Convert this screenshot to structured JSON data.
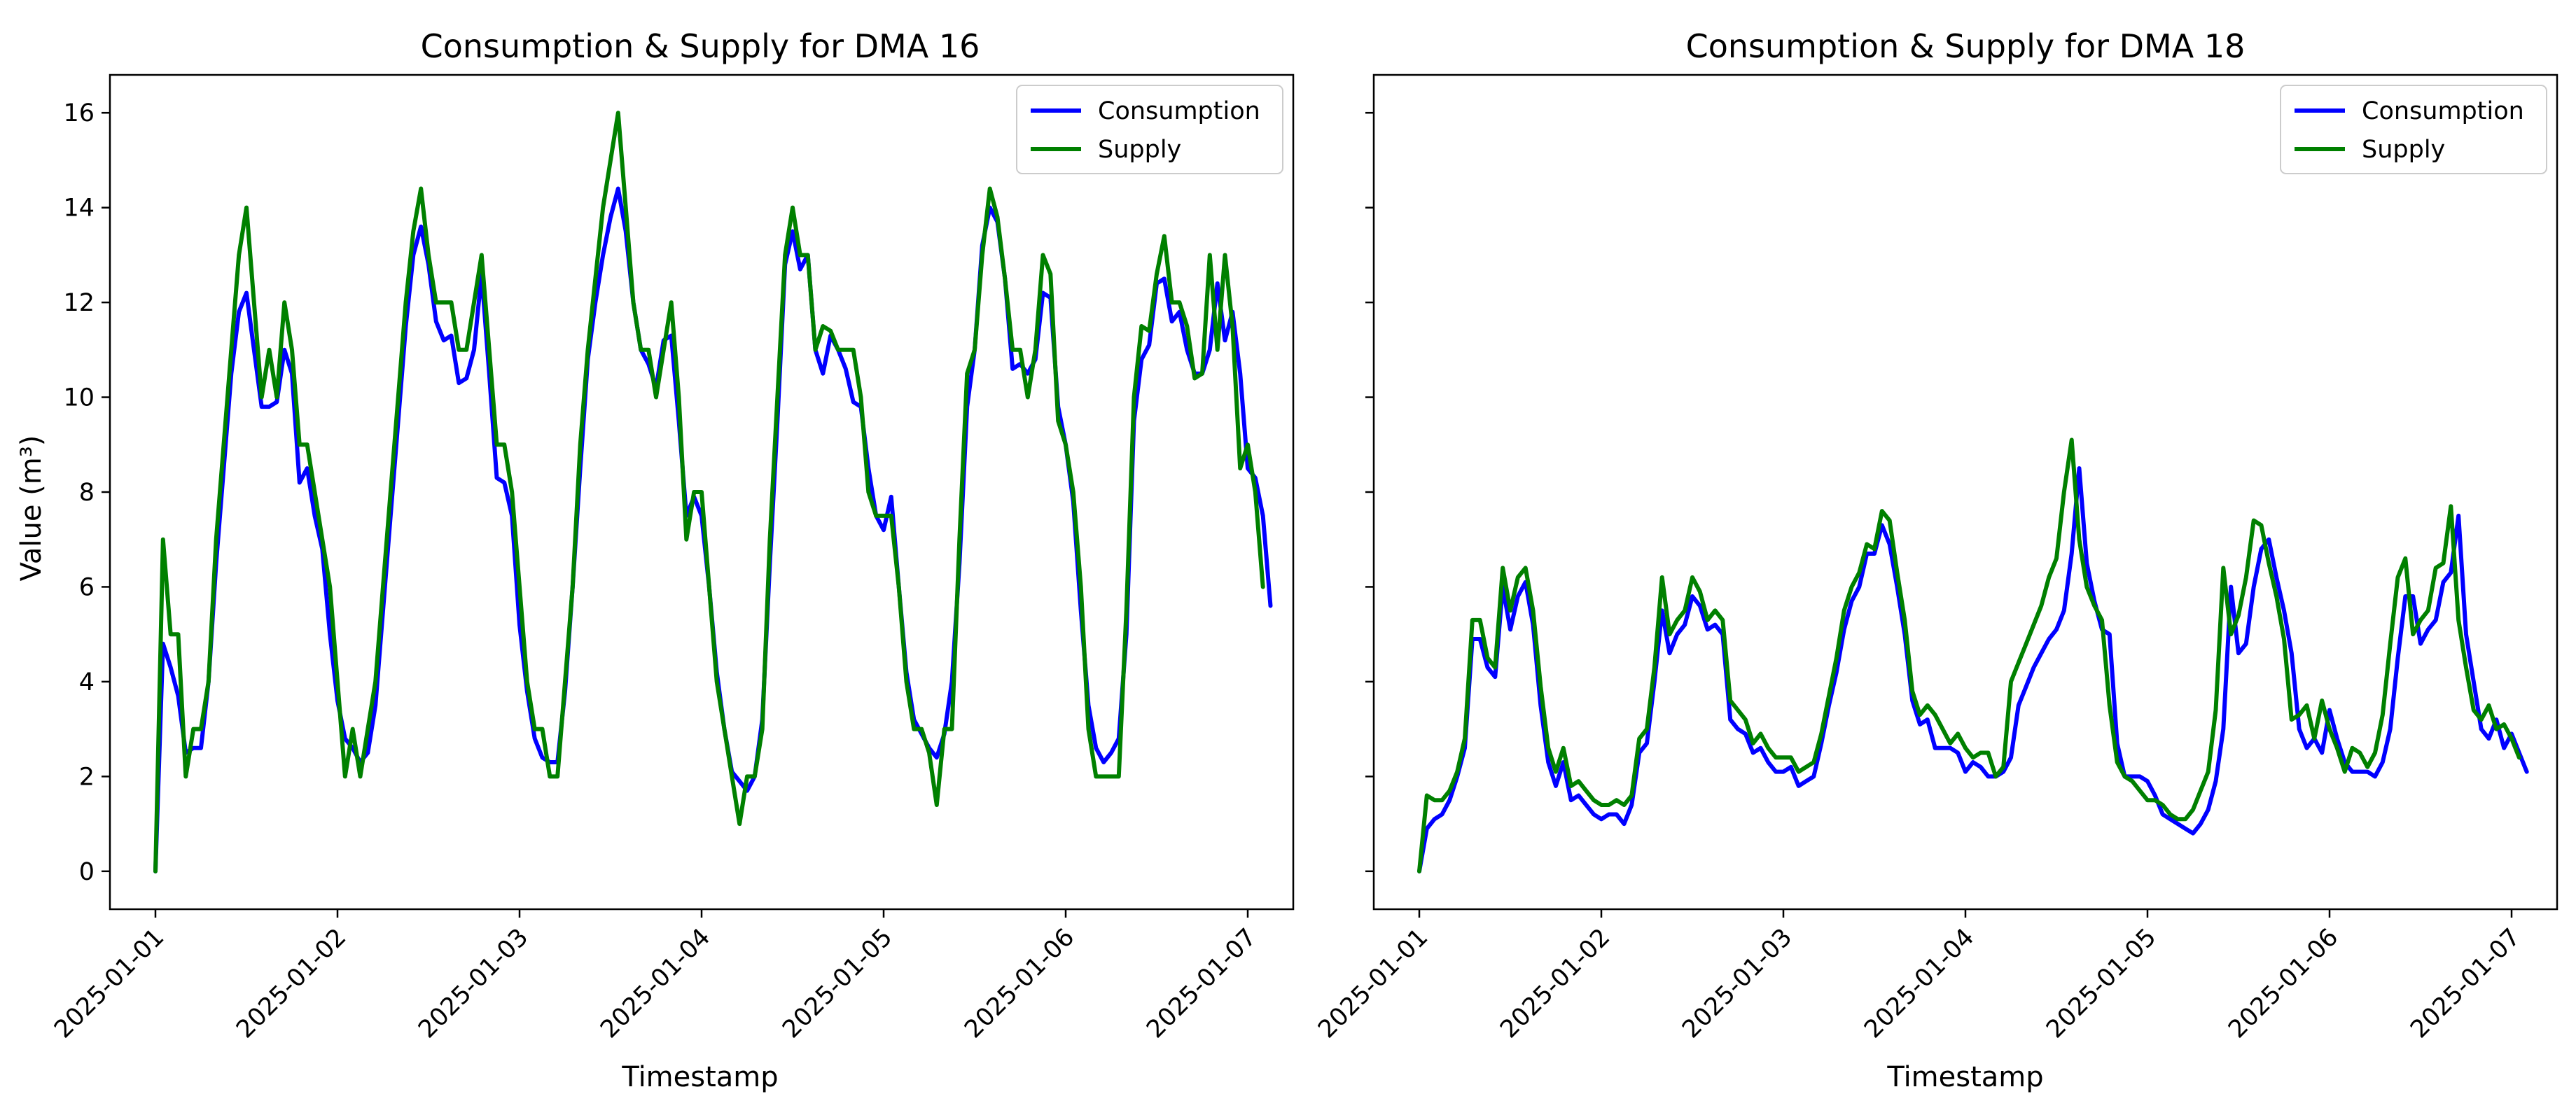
{
  "colors": {
    "consumption": "#0000ff",
    "supply": "#008000"
  },
  "chart_data": [
    {
      "type": "line",
      "title": "Consumption & Supply for DMA 16",
      "xlabel": "Timestamp",
      "ylabel": "Value (m³)",
      "ylim": [
        -0.8,
        16.8
      ],
      "yticks": [
        "0",
        "2",
        "4",
        "6",
        "8",
        "10",
        "12",
        "14",
        "16"
      ],
      "xticks": [
        "2025-01-01",
        "2025-01-02",
        "2025-01-03",
        "2025-01-04",
        "2025-01-05",
        "2025-01-06",
        "2025-01-07"
      ],
      "xlim": [
        -0.25,
        6.25
      ],
      "x_step_days": 0.0416667,
      "legend": {
        "location": "upper right",
        "entries": [
          "Consumption",
          "Supply"
        ]
      },
      "series": [
        {
          "name": "Consumption",
          "values": [
            0.0,
            4.8,
            4.3,
            3.7,
            2.5,
            2.6,
            2.6,
            4.0,
            6.5,
            8.5,
            10.5,
            11.8,
            12.2,
            11.0,
            9.8,
            9.8,
            9.9,
            11.0,
            10.5,
            8.2,
            8.5,
            7.5,
            6.8,
            5.0,
            3.6,
            2.8,
            2.6,
            2.3,
            2.5,
            3.5,
            5.5,
            7.5,
            9.5,
            11.5,
            13.0,
            13.6,
            12.8,
            11.6,
            11.2,
            11.3,
            10.3,
            10.4,
            11.0,
            12.6,
            10.5,
            8.3,
            8.2,
            7.5,
            5.2,
            3.8,
            2.8,
            2.4,
            2.3,
            2.3,
            3.8,
            6.0,
            8.5,
            10.8,
            12.0,
            13.0,
            13.8,
            14.4,
            13.5,
            12.0,
            11.0,
            10.7,
            10.2,
            11.2,
            11.3,
            9.5,
            7.5,
            7.9,
            7.5,
            6.0,
            4.2,
            3.0,
            2.1,
            1.9,
            1.7,
            2.0,
            3.2,
            6.5,
            9.5,
            12.8,
            13.5,
            12.7,
            13.0,
            11.0,
            10.5,
            11.3,
            11.0,
            10.6,
            9.9,
            9.8,
            8.5,
            7.5,
            7.2,
            7.9,
            6.0,
            4.2,
            3.2,
            2.9,
            2.6,
            2.4,
            2.9,
            4.0,
            6.5,
            9.8,
            11.0,
            13.2,
            14.0,
            13.7,
            12.5,
            10.6,
            10.7,
            10.5,
            10.8,
            12.2,
            12.1,
            9.8,
            9.0,
            7.8,
            5.5,
            3.5,
            2.6,
            2.3,
            2.5,
            2.8,
            5.0,
            9.5,
            10.8,
            11.1,
            12.4,
            12.5,
            11.6,
            11.8,
            11.0,
            10.5,
            10.5,
            11.0,
            12.4,
            11.2,
            11.8,
            10.5,
            8.5,
            8.3,
            7.5,
            5.6
          ]
        },
        {
          "name": "Supply",
          "values": [
            0.0,
            7.0,
            5.0,
            5.0,
            2.0,
            3.0,
            3.0,
            4.0,
            7.0,
            9.0,
            11.0,
            13.0,
            14.0,
            12.0,
            10.0,
            11.0,
            10.0,
            12.0,
            11.0,
            9.0,
            9.0,
            8.0,
            7.0,
            6.0,
            4.0,
            2.0,
            3.0,
            2.0,
            3.0,
            4.0,
            6.0,
            8.0,
            10.0,
            12.0,
            13.5,
            14.4,
            13.0,
            12.0,
            12.0,
            12.0,
            11.0,
            11.0,
            12.0,
            13.0,
            11.0,
            9.0,
            9.0,
            8.0,
            6.0,
            4.0,
            3.0,
            3.0,
            2.0,
            2.0,
            4.0,
            6.0,
            9.0,
            11.0,
            12.5,
            14.0,
            15.0,
            16.0,
            14.0,
            12.0,
            11.0,
            11.0,
            10.0,
            11.0,
            12.0,
            10.0,
            7.0,
            8.0,
            8.0,
            6.0,
            4.0,
            3.0,
            2.0,
            1.0,
            2.0,
            2.0,
            3.0,
            7.0,
            10.0,
            13.0,
            14.0,
            13.0,
            13.0,
            11.0,
            11.5,
            11.4,
            11.0,
            11.0,
            11.0,
            10.0,
            8.0,
            7.5,
            7.5,
            7.5,
            6.0,
            4.0,
            3.0,
            3.0,
            2.5,
            1.4,
            3.0,
            3.0,
            7.0,
            10.5,
            11.0,
            13.0,
            14.4,
            13.8,
            12.5,
            11.0,
            11.0,
            10.0,
            11.0,
            13.0,
            12.6,
            9.5,
            9.0,
            8.0,
            6.0,
            3.0,
            2.0,
            2.0,
            2.0,
            2.0,
            5.5,
            10.0,
            11.5,
            11.4,
            12.6,
            13.4,
            12.0,
            12.0,
            11.5,
            10.4,
            10.5,
            13.0,
            11.0,
            13.0,
            11.5,
            8.5,
            9.0,
            8.0,
            6.0
          ]
        }
      ]
    },
    {
      "type": "line",
      "title": "Consumption & Supply for DMA 18",
      "xlabel": "Timestamp",
      "ylabel": "",
      "ylim": [
        -0.8,
        16.8
      ],
      "yticks": [],
      "xticks": [
        "2025-01-01",
        "2025-01-02",
        "2025-01-03",
        "2025-01-04",
        "2025-01-05",
        "2025-01-06",
        "2025-01-07"
      ],
      "xlim": [
        -0.25,
        6.25
      ],
      "x_step_days": 0.0416667,
      "legend": {
        "location": "upper right",
        "entries": [
          "Consumption",
          "Supply"
        ]
      },
      "series": [
        {
          "name": "Consumption",
          "values": [
            0.0,
            0.9,
            1.1,
            1.2,
            1.5,
            2.0,
            2.6,
            4.9,
            4.9,
            4.3,
            4.1,
            6.0,
            5.1,
            5.8,
            6.1,
            5.2,
            3.5,
            2.3,
            1.8,
            2.3,
            1.5,
            1.6,
            1.4,
            1.2,
            1.1,
            1.2,
            1.2,
            1.0,
            1.4,
            2.5,
            2.7,
            4.0,
            5.5,
            4.6,
            5.0,
            5.2,
            5.8,
            5.6,
            5.1,
            5.2,
            5.0,
            3.2,
            3.0,
            2.9,
            2.5,
            2.6,
            2.3,
            2.1,
            2.1,
            2.2,
            1.8,
            1.9,
            2.0,
            2.7,
            3.5,
            4.2,
            5.1,
            5.7,
            6.0,
            6.7,
            6.7,
            7.3,
            6.9,
            6.0,
            5.0,
            3.6,
            3.1,
            3.2,
            2.6,
            2.6,
            2.6,
            2.5,
            2.1,
            2.3,
            2.2,
            2.0,
            2.0,
            2.1,
            2.4,
            3.5,
            3.9,
            4.3,
            4.6,
            4.9,
            5.1,
            5.5,
            6.7,
            8.5,
            6.5,
            5.7,
            5.1,
            5.0,
            2.7,
            2.0,
            2.0,
            2.0,
            1.9,
            1.6,
            1.2,
            1.1,
            1.0,
            0.9,
            0.8,
            1.0,
            1.3,
            1.9,
            3.0,
            6.0,
            4.6,
            4.8,
            6.0,
            6.8,
            7.0,
            6.2,
            5.5,
            4.6,
            3.0,
            2.6,
            2.8,
            2.5,
            3.4,
            2.8,
            2.3,
            2.1,
            2.1,
            2.1,
            2.0,
            2.3,
            3.0,
            4.5,
            5.8,
            5.8,
            4.8,
            5.1,
            5.3,
            6.1,
            6.3,
            7.5,
            5.0,
            4.0,
            3.0,
            2.8,
            3.2,
            2.6,
            2.9,
            2.5,
            2.1
          ]
        },
        {
          "name": "Supply",
          "values": [
            0.0,
            1.6,
            1.5,
            1.5,
            1.7,
            2.1,
            2.8,
            5.3,
            5.3,
            4.5,
            4.3,
            6.4,
            5.5,
            6.2,
            6.4,
            5.5,
            3.9,
            2.6,
            2.1,
            2.6,
            1.8,
            1.9,
            1.7,
            1.5,
            1.4,
            1.4,
            1.5,
            1.4,
            1.6,
            2.8,
            3.0,
            4.3,
            6.2,
            5.0,
            5.3,
            5.5,
            6.2,
            5.9,
            5.3,
            5.5,
            5.3,
            3.6,
            3.4,
            3.2,
            2.7,
            2.9,
            2.6,
            2.4,
            2.4,
            2.4,
            2.1,
            2.2,
            2.3,
            2.9,
            3.7,
            4.5,
            5.5,
            6.0,
            6.3,
            6.9,
            6.8,
            7.6,
            7.4,
            6.3,
            5.3,
            3.8,
            3.3,
            3.5,
            3.3,
            3.0,
            2.7,
            2.9,
            2.6,
            2.4,
            2.5,
            2.5,
            2.0,
            2.2,
            4.0,
            4.4,
            4.8,
            5.2,
            5.6,
            6.2,
            6.6,
            8.0,
            9.1,
            7.0,
            6.0,
            5.6,
            5.3,
            3.5,
            2.3,
            2.0,
            1.9,
            1.7,
            1.5,
            1.5,
            1.4,
            1.2,
            1.1,
            1.1,
            1.3,
            1.7,
            2.1,
            3.4,
            6.4,
            5.0,
            5.4,
            6.2,
            7.4,
            7.3,
            6.5,
            5.8,
            4.9,
            3.2,
            3.3,
            3.5,
            2.8,
            3.6,
            3.0,
            2.6,
            2.1,
            2.6,
            2.5,
            2.2,
            2.5,
            3.3,
            4.8,
            6.2,
            6.6,
            5.0,
            5.3,
            5.5,
            6.4,
            6.5,
            7.7,
            5.3,
            4.3,
            3.4,
            3.2,
            3.5,
            3.0,
            3.1,
            2.8,
            2.4
          ]
        }
      ]
    }
  ]
}
